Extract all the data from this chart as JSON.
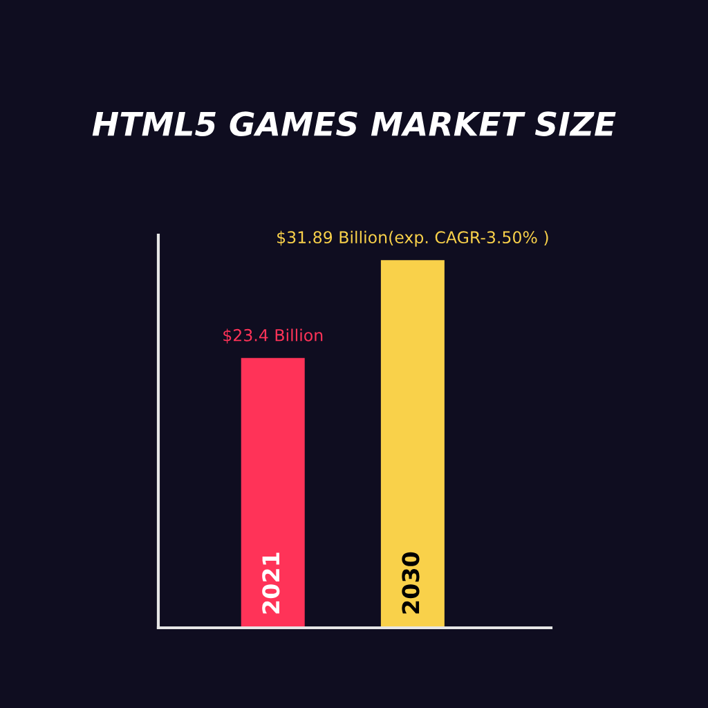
{
  "chart_data": {
    "type": "bar",
    "title": "HTML5 GAMES MARKET SIZE",
    "categories": [
      "2021",
      "2030"
    ],
    "values": [
      23.4,
      31.89
    ],
    "colors": [
      "#ff3358",
      "#f9d14a"
    ],
    "value_labels": [
      "$23.4 Billion",
      "$31.89 Billion(exp. CAGR-3.50% )"
    ],
    "tick_labels": "x"
  }
}
